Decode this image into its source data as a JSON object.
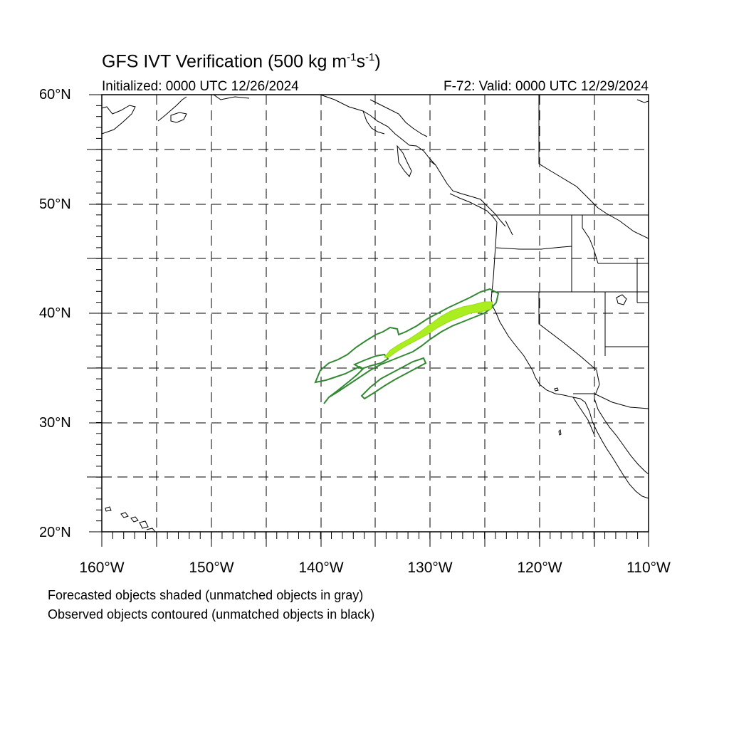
{
  "title": {
    "text": "GFS IVT Verification (500 kg m",
    "sup1": "-1",
    "mid": "s",
    "sup2": "-1",
    "end": ")"
  },
  "subtitle_left": "Initialized: 0000 UTC 12/26/2024",
  "subtitle_right": "F-72: Valid: 0000 UTC 12/29/2024",
  "lat_labels": [
    "60°N",
    "50°N",
    "40°N",
    "30°N",
    "20°N"
  ],
  "lon_labels": [
    "160°W",
    "150°W",
    "140°W",
    "130°W",
    "120°W",
    "110°W"
  ],
  "legend": {
    "line1": "Forecasted objects shaded (unmatched objects in gray)",
    "line2": "Observed objects contoured (unmatched objects in black)"
  },
  "colors": {
    "forecast_fill": "#aaee22",
    "observed_contour": "#338833",
    "coast": "#000000",
    "grid": "#000000"
  }
}
